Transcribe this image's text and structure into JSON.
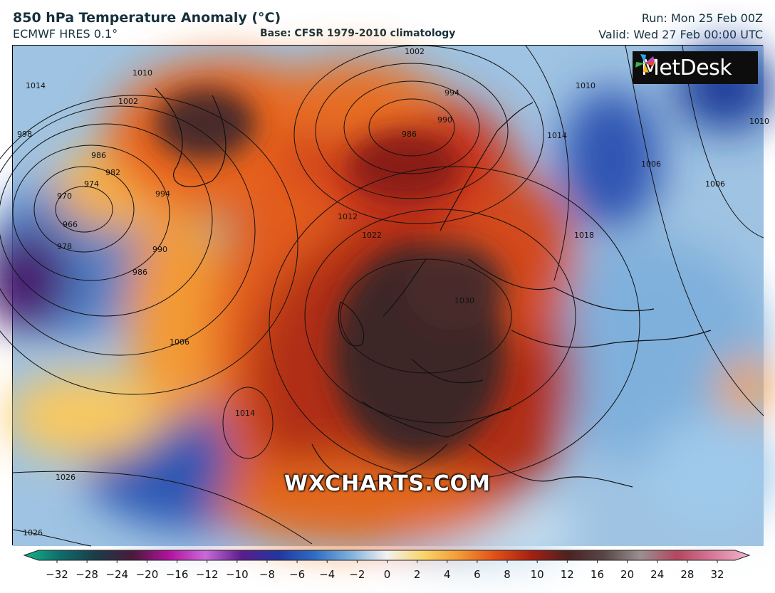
{
  "header": {
    "title": "850 hPa Temperature Anomaly (°C)",
    "model": "ECMWF HRES 0.1°",
    "base": "Base: CFSR 1979-2010 climatology",
    "run": "Run: Mon 25 Feb 00Z",
    "valid": "Valid: Wed 27 Feb 00:00 UTC"
  },
  "logo": {
    "text": "MetDesk",
    "icon": "pinwheel-icon"
  },
  "watermark": "WXCHARTS.COM",
  "contour_labels": [
    "1014",
    "1010",
    "1002",
    "998",
    "986",
    "982",
    "974",
    "970",
    "966",
    "978",
    "994",
    "990",
    "986",
    "1006",
    "1014",
    "1026",
    "1026",
    "1002",
    "994",
    "990",
    "986",
    "1012",
    "1022",
    "1030",
    "1018",
    "1006",
    "1006",
    "1010",
    "1014",
    "1010"
  ],
  "colorbar": {
    "ticks": [
      "−32",
      "−28",
      "−24",
      "−20",
      "−16",
      "−12",
      "−10",
      "−8",
      "−6",
      "−4",
      "−2",
      "0",
      "2",
      "4",
      "6",
      "8",
      "10",
      "12",
      "16",
      "20",
      "24",
      "28",
      "32"
    ]
  },
  "colors": {
    "extreme_warm": "#3b2424",
    "warm": "#c0390f",
    "mild": "#f7a23a",
    "neutral": "#f2f2f2",
    "cool": "#7fb0dc",
    "cold": "#2747a8",
    "very_cold": "#47136d"
  }
}
